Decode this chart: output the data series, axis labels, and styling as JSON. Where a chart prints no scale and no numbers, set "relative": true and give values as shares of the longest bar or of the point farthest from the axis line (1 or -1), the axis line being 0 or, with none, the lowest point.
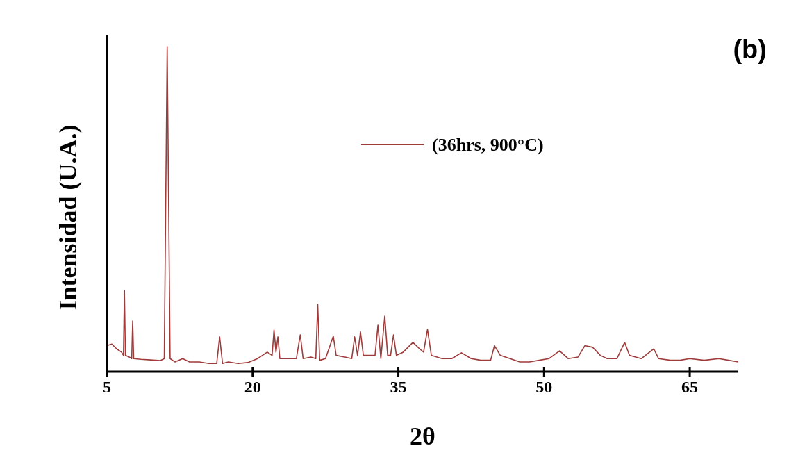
{
  "chart_data": {
    "type": "line",
    "relative": true,
    "xlabel": "2θ",
    "ylabel": "Intensidad (U.A.)",
    "annotations": [
      "(b)"
    ],
    "xlim": [
      5,
      70
    ],
    "xticks": [
      5,
      20,
      35,
      50,
      65
    ],
    "legend": "top right",
    "grid": false,
    "x": [
      5.0,
      5.5,
      6.0,
      6.5,
      6.7,
      6.8,
      6.9,
      7.3,
      7.55,
      7.65,
      7.75,
      8.5,
      9.5,
      10.5,
      10.9,
      11.2,
      11.5,
      12,
      12.8,
      13.5,
      14.5,
      15.5,
      16.3,
      16.6,
      16.9,
      17.5,
      18.5,
      19.5,
      20.5,
      21.0,
      21.5,
      22.0,
      22.2,
      22.4,
      22.6,
      22.8,
      23.5,
      24.5,
      24.9,
      25.2,
      26.0,
      26.5,
      26.7,
      26.9,
      27.5,
      28.3,
      28.6,
      29.5,
      30.2,
      30.5,
      30.8,
      31.1,
      31.4,
      32.0,
      32.6,
      32.9,
      33.2,
      33.6,
      33.9,
      34.2,
      34.5,
      34.8,
      35.5,
      36.5,
      37.2,
      37.6,
      38.0,
      38.4,
      39.5,
      40.5,
      41.5,
      42.5,
      43.5,
      44.5,
      44.9,
      45.5,
      46.5,
      47.5,
      48.5,
      49.5,
      50.5,
      51.6,
      52.5,
      53.5,
      54.2,
      55.0,
      55.8,
      56.5,
      57.5,
      58.3,
      58.8,
      60.0,
      61.3,
      61.8,
      63.0,
      64.0,
      65.0,
      66.5,
      68.0,
      69.0,
      70.0
    ],
    "series": [
      {
        "name": "(36hrs, 900°C)",
        "color": "#9e3b3b",
        "values": [
          0.08,
          0.085,
          0.07,
          0.06,
          0.05,
          0.25,
          0.05,
          0.045,
          0.04,
          0.156,
          0.04,
          0.038,
          0.036,
          0.034,
          0.04,
          1,
          0.04,
          0.03,
          0.04,
          0.03,
          0.03,
          0.025,
          0.025,
          0.107,
          0.025,
          0.03,
          0.025,
          0.028,
          0.04,
          0.05,
          0.06,
          0.05,
          0.128,
          0.06,
          0.107,
          0.04,
          0.04,
          0.04,
          0.113,
          0.04,
          0.045,
          0.04,
          0.207,
          0.035,
          0.04,
          0.109,
          0.05,
          0.045,
          0.04,
          0.107,
          0.05,
          0.122,
          0.05,
          0.05,
          0.05,
          0.143,
          0.04,
          0.171,
          0.05,
          0.05,
          0.113,
          0.05,
          0.06,
          0.09,
          0.07,
          0.06,
          0.13,
          0.05,
          0.04,
          0.04,
          0.058,
          0.04,
          0.035,
          0.035,
          0.08,
          0.05,
          0.04,
          0.03,
          0.03,
          0.035,
          0.04,
          0.064,
          0.04,
          0.045,
          0.08,
          0.075,
          0.05,
          0.04,
          0.04,
          0.09,
          0.05,
          0.04,
          0.07,
          0.04,
          0.035,
          0.035,
          0.04,
          0.035,
          0.04,
          0.035,
          0.03
        ]
      }
    ]
  }
}
